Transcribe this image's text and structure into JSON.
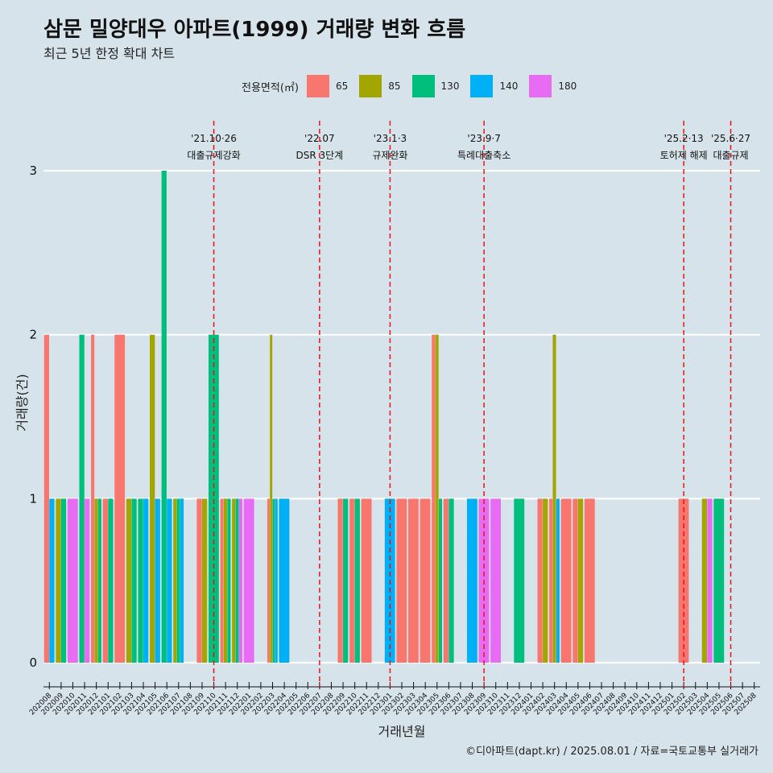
{
  "title": "삼문 밀양대우 아파트(1999) 거래량 변화 흐름",
  "subtitle": "최근 5년 한정 확대 차트",
  "caption": "©디아파트(dapt.kr) / 2025.08.01 / 자료=국토교통부 실거래가",
  "legend": {
    "title": "전용면적(㎡)",
    "items": [
      {
        "label": "65",
        "color": "#f8766d"
      },
      {
        "label": "85",
        "color": "#a3a500"
      },
      {
        "label": "130",
        "color": "#00bf7d"
      },
      {
        "label": "140",
        "color": "#00b0f6"
      },
      {
        "label": "180",
        "color": "#e76bf3"
      }
    ]
  },
  "chart_data": {
    "type": "bar",
    "xlabel": "거래년월",
    "ylabel": "거래량(건)",
    "ylim": [
      0,
      3
    ],
    "yticks": [
      0,
      1,
      2,
      3
    ],
    "grid": true,
    "legend_position": "top",
    "categories": [
      "202008",
      "202009",
      "202010",
      "202011",
      "202012",
      "202101",
      "202102",
      "202103",
      "202104",
      "202105",
      "202106",
      "202107",
      "202108",
      "202109",
      "202110",
      "202111",
      "202112",
      "202201",
      "202202",
      "202203",
      "202204",
      "202205",
      "202206",
      "202207",
      "202208",
      "202209",
      "202210",
      "202211",
      "202212",
      "202301",
      "202302",
      "202303",
      "202304",
      "202305",
      "202306",
      "202307",
      "202308",
      "202309",
      "202310",
      "202311",
      "202312",
      "202401",
      "202402",
      "202403",
      "202404",
      "202405",
      "202406",
      "202407",
      "202408",
      "202409",
      "202410",
      "202411",
      "202412",
      "202501",
      "202502",
      "202503",
      "202504",
      "202505",
      "202506",
      "202507",
      "202508"
    ],
    "series": [
      {
        "name": "65",
        "color": "#f8766d",
        "values": [
          2,
          0,
          0,
          0,
          2,
          1,
          2,
          0,
          0,
          0,
          0,
          0,
          0,
          1,
          0,
          1,
          0,
          0,
          0,
          1,
          0,
          0,
          0,
          0,
          0,
          1,
          1,
          1,
          0,
          0,
          1,
          1,
          1,
          2,
          1,
          0,
          0,
          0,
          0,
          0,
          0,
          0,
          1,
          1,
          1,
          1,
          1,
          0,
          0,
          0,
          0,
          0,
          0,
          0,
          1,
          0,
          0,
          0,
          0,
          0,
          0
        ]
      },
      {
        "name": "85",
        "color": "#a3a500",
        "values": [
          0,
          1,
          0,
          0,
          1,
          0,
          0,
          1,
          0,
          2,
          0,
          1,
          0,
          1,
          0,
          1,
          1,
          0,
          0,
          2,
          0,
          0,
          0,
          0,
          0,
          0,
          0,
          0,
          0,
          0,
          0,
          0,
          0,
          2,
          0,
          0,
          0,
          0,
          0,
          0,
          0,
          0,
          1,
          2,
          0,
          1,
          0,
          0,
          0,
          0,
          0,
          0,
          0,
          0,
          0,
          0,
          1,
          0,
          0,
          0,
          0
        ]
      },
      {
        "name": "130",
        "color": "#00bf7d",
        "values": [
          0,
          1,
          0,
          2,
          1,
          1,
          0,
          1,
          1,
          0,
          3,
          1,
          0,
          0,
          2,
          1,
          1,
          0,
          0,
          1,
          0,
          0,
          0,
          0,
          0,
          1,
          1,
          0,
          0,
          0,
          0,
          0,
          0,
          1,
          1,
          0,
          0,
          0,
          0,
          0,
          1,
          0,
          0,
          0,
          0,
          0,
          0,
          0,
          0,
          0,
          0,
          0,
          0,
          0,
          0,
          0,
          0,
          1,
          0,
          0,
          0
        ]
      },
      {
        "name": "140",
        "color": "#00b0f6",
        "values": [
          1,
          0,
          0,
          0,
          0,
          0,
          0,
          0,
          1,
          1,
          1,
          1,
          0,
          0,
          0,
          0,
          0,
          0,
          0,
          1,
          1,
          0,
          0,
          0,
          0,
          0,
          0,
          0,
          0,
          1,
          0,
          0,
          0,
          0,
          0,
          0,
          1,
          0,
          0,
          0,
          0,
          0,
          0,
          1,
          0,
          0,
          0,
          0,
          0,
          0,
          0,
          0,
          0,
          0,
          0,
          0,
          0,
          0,
          0,
          0,
          0
        ]
      },
      {
        "name": "180",
        "color": "#e76bf3",
        "values": [
          0,
          0,
          1,
          1,
          0,
          0,
          0,
          0,
          0,
          0,
          0,
          0,
          0,
          0,
          0,
          0,
          1,
          1,
          0,
          0,
          0,
          0,
          0,
          0,
          0,
          0,
          0,
          0,
          0,
          0,
          0,
          0,
          0,
          0,
          0,
          0,
          0,
          1,
          1,
          0,
          0,
          0,
          0,
          0,
          0,
          0,
          0,
          0,
          0,
          0,
          0,
          0,
          0,
          0,
          0,
          0,
          1,
          0,
          0,
          0,
          0
        ]
      }
    ],
    "events": [
      {
        "date": "'21.10·26",
        "label": "대출규제강화",
        "after": "202110"
      },
      {
        "date": "'22.07",
        "label": "DSR 3단계",
        "after": "202207"
      },
      {
        "date": "'23.1·3",
        "label": "규제완화",
        "after": "202301"
      },
      {
        "date": "'23.9·7",
        "label": "특례대출축소",
        "after": "202309"
      },
      {
        "date": "'25.2·13",
        "label": "토허제 해제",
        "after": "202502"
      },
      {
        "date": "'25.6·27",
        "label": "대출규제",
        "after": "202506"
      }
    ]
  }
}
